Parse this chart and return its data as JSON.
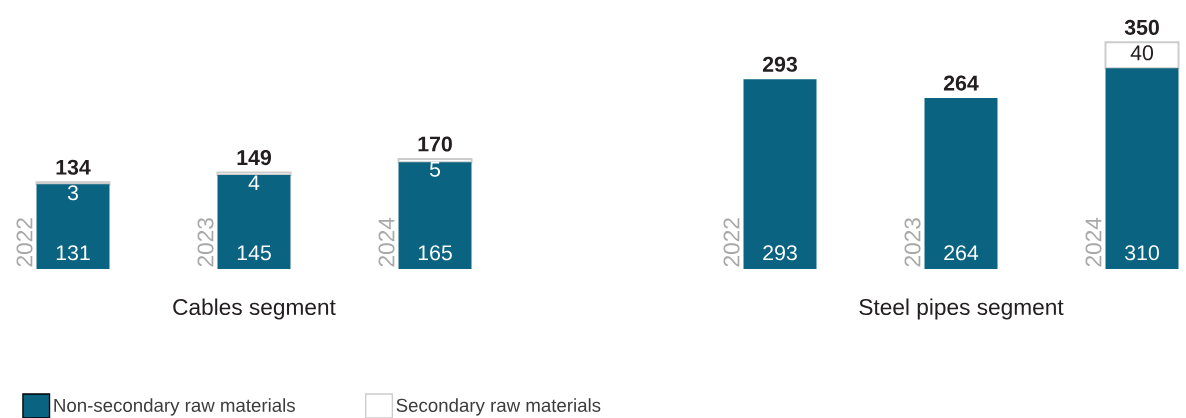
{
  "chart_data": [
    {
      "type": "bar",
      "stacked": true,
      "categories": [
        "2022",
        "2023",
        "2024"
      ],
      "xlabel": "Cables segment",
      "legend": "bottom",
      "series": [
        {
          "name": "Non-secondary raw materials",
          "color": "#0a6381",
          "values": [
            131,
            145,
            165
          ],
          "value_labels": [
            "131",
            "145",
            "165"
          ]
        },
        {
          "name": "Secondary raw materials",
          "color": "#cccccc",
          "values": [
            3,
            4,
            5
          ],
          "value_labels": [
            "3",
            "4",
            "5"
          ]
        }
      ],
      "totals": [
        "134",
        "149",
        "170"
      ]
    },
    {
      "type": "bar",
      "stacked": true,
      "categories": [
        "2022",
        "2023",
        "2024"
      ],
      "xlabel": "Steel pipes segment",
      "series": [
        {
          "color": "#0a6381",
          "values": [
            293,
            264,
            310
          ],
          "value_labels": [
            "293",
            "264",
            "310"
          ]
        },
        {
          "color": "#cccccc",
          "values": [
            0,
            0,
            40
          ],
          "value_labels": [
            null,
            null,
            "40"
          ]
        }
      ],
      "totals": [
        "293",
        "264",
        "350"
      ]
    }
  ]
}
